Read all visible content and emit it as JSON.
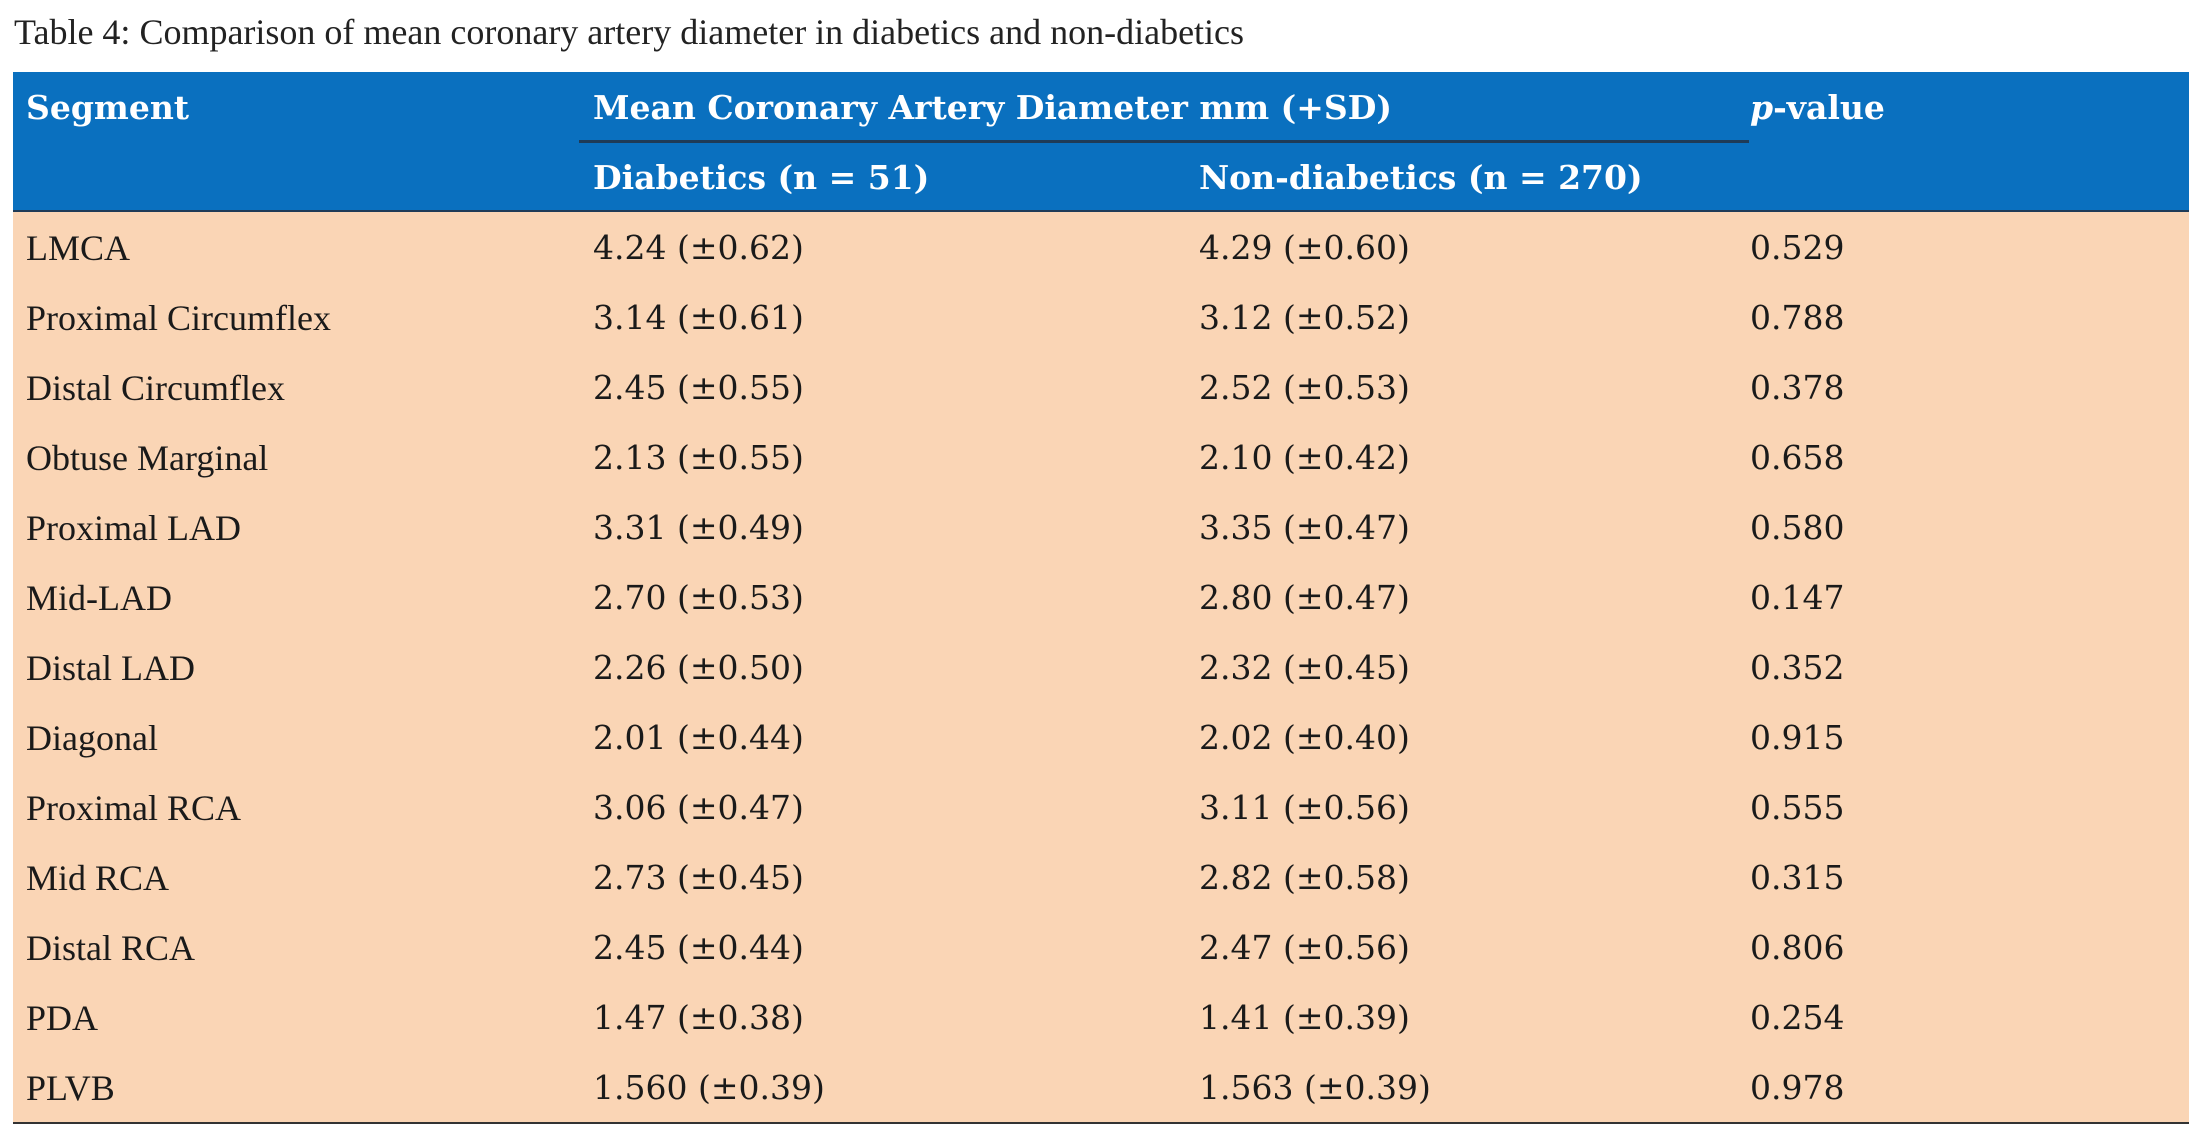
{
  "caption": "Table 4: Comparison of mean coronary artery diameter in diabetics and non-diabetics",
  "header": {
    "segment": "Segment",
    "mean_group": "Mean Coronary Artery Diameter mm (+SD)",
    "p_italic": "p",
    "p_rest": "-value",
    "diabetics": "Diabetics (n = 51)",
    "non_diabetics": "Non-diabetics (n = 270)"
  },
  "colors": {
    "header_bg": "#0a70bf",
    "body_bg": "#fad5b5",
    "header_text": "#ffffff"
  },
  "rows": [
    {
      "segment": "LMCA",
      "diabetics": "4.24 (±0.62)",
      "non_diabetics": "4.29 (±0.60)",
      "p": "0.529"
    },
    {
      "segment": "Proximal Circumflex",
      "diabetics": "3.14 (±0.61)",
      "non_diabetics": "3.12 (±0.52)",
      "p": "0.788"
    },
    {
      "segment": "Distal Circumflex",
      "diabetics": "2.45 (±0.55)",
      "non_diabetics": "2.52 (±0.53)",
      "p": "0.378"
    },
    {
      "segment": "Obtuse Marginal",
      "diabetics": "2.13 (±0.55)",
      "non_diabetics": "2.10 (±0.42)",
      "p": "0.658"
    },
    {
      "segment": "Proximal LAD",
      "diabetics": "3.31 (±0.49)",
      "non_diabetics": "3.35 (±0.47)",
      "p": "0.580"
    },
    {
      "segment": "Mid-LAD",
      "diabetics": "2.70 (±0.53)",
      "non_diabetics": "2.80 (±0.47)",
      "p": "0.147"
    },
    {
      "segment": "Distal LAD",
      "diabetics": "2.26 (±0.50)",
      "non_diabetics": "2.32 (±0.45)",
      "p": "0.352"
    },
    {
      "segment": "Diagonal",
      "diabetics": "2.01 (±0.44)",
      "non_diabetics": "2.02 (±0.40)",
      "p": "0.915"
    },
    {
      "segment": "Proximal RCA",
      "diabetics": "3.06 (±0.47)",
      "non_diabetics": "3.11 (±0.56)",
      "p": "0.555"
    },
    {
      "segment": "Mid RCA",
      "diabetics": "2.73 (±0.45)",
      "non_diabetics": "2.82 (±0.58)",
      "p": "0.315"
    },
    {
      "segment": "Distal RCA",
      "diabetics": "2.45 (±0.44)",
      "non_diabetics": "2.47 (±0.56)",
      "p": "0.806"
    },
    {
      "segment": "PDA",
      "diabetics": "1.47 (±0.38)",
      "non_diabetics": "1.41 (±0.39)",
      "p": "0.254"
    },
    {
      "segment": "PLVB",
      "diabetics": "1.560 (±0.39)",
      "non_diabetics": "1.563 (±0.39)",
      "p": "0.978"
    }
  ]
}
